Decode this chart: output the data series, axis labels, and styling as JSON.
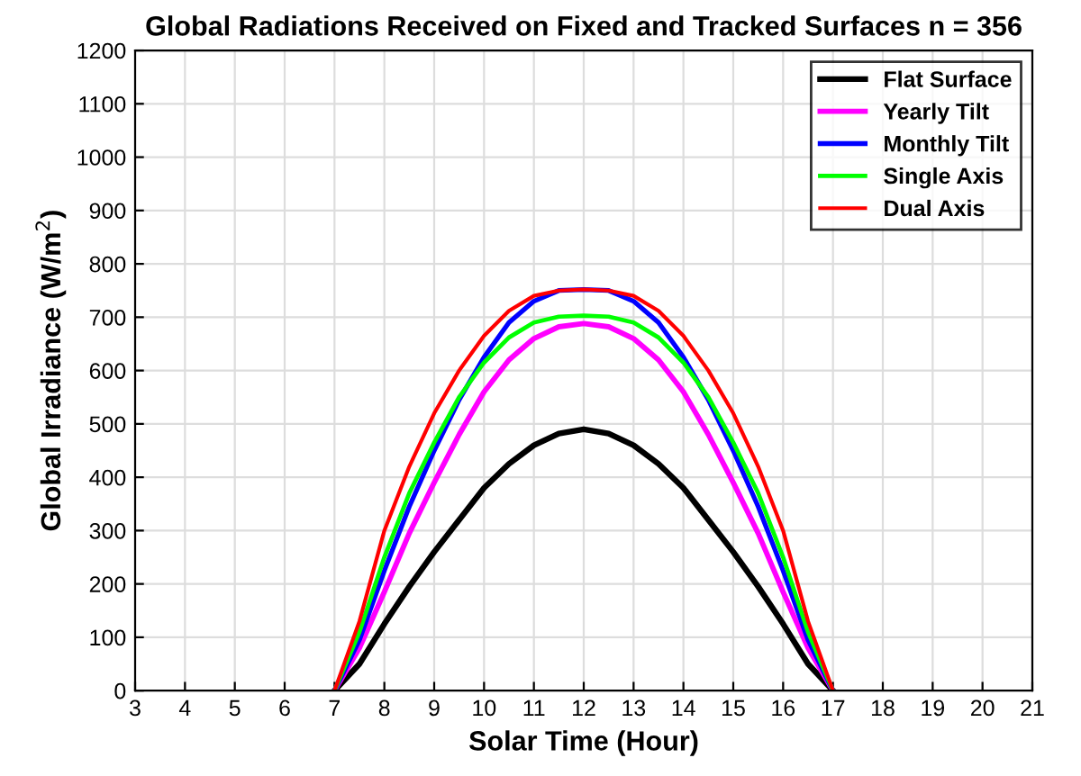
{
  "chart_data": {
    "type": "line",
    "title": "Global Radiations Received on Fixed and Tracked Surfaces n = 356",
    "xlabel": "Solar Time (Hour)",
    "ylabel": "Global Irradiance (W/m$^{2}$)",
    "x": [
      7,
      7.5,
      8,
      8.5,
      9,
      9.5,
      10,
      10.5,
      11,
      11.5,
      12,
      12.5,
      13,
      13.5,
      14,
      14.5,
      15,
      15.5,
      16,
      16.5,
      17
    ],
    "series": [
      {
        "name": "Flat Surface",
        "color": "#000000",
        "values": [
          0,
          50,
          125,
          195,
          260,
          320,
          380,
          425,
          460,
          482,
          490,
          482,
          460,
          425,
          380,
          320,
          260,
          195,
          125,
          50,
          0
        ]
      },
      {
        "name": "Yearly Tilt",
        "color": "#ff00ff",
        "values": [
          0,
          80,
          185,
          295,
          390,
          480,
          560,
          620,
          660,
          682,
          688,
          682,
          660,
          620,
          560,
          480,
          390,
          295,
          185,
          80,
          0
        ]
      },
      {
        "name": "Monthly Tilt",
        "color": "#0000ff",
        "values": [
          0,
          95,
          225,
          345,
          450,
          545,
          625,
          690,
          730,
          750,
          752,
          750,
          730,
          690,
          625,
          545,
          450,
          345,
          225,
          95,
          0
        ]
      },
      {
        "name": "Single Axis",
        "color": "#00ff00",
        "values": [
          0,
          110,
          250,
          370,
          465,
          550,
          615,
          662,
          690,
          701,
          703,
          701,
          690,
          662,
          615,
          550,
          465,
          370,
          250,
          110,
          0
        ]
      },
      {
        "name": "Dual Axis",
        "color": "#ff0000",
        "values": [
          0,
          130,
          300,
          420,
          520,
          600,
          665,
          712,
          740,
          750,
          752,
          750,
          740,
          712,
          665,
          600,
          520,
          420,
          300,
          130,
          0
        ]
      }
    ],
    "xlim": [
      3,
      21
    ],
    "xticks": [
      3,
      4,
      5,
      6,
      7,
      8,
      9,
      10,
      11,
      12,
      13,
      14,
      15,
      16,
      17,
      18,
      19,
      20,
      21
    ],
    "ylim": [
      0,
      1200
    ],
    "yticks": [
      0,
      100,
      200,
      300,
      400,
      500,
      600,
      700,
      800,
      900,
      1000,
      1100,
      1200
    ],
    "grid": true,
    "legend": "top right",
    "marker": "none",
    "line_style": "solid"
  }
}
